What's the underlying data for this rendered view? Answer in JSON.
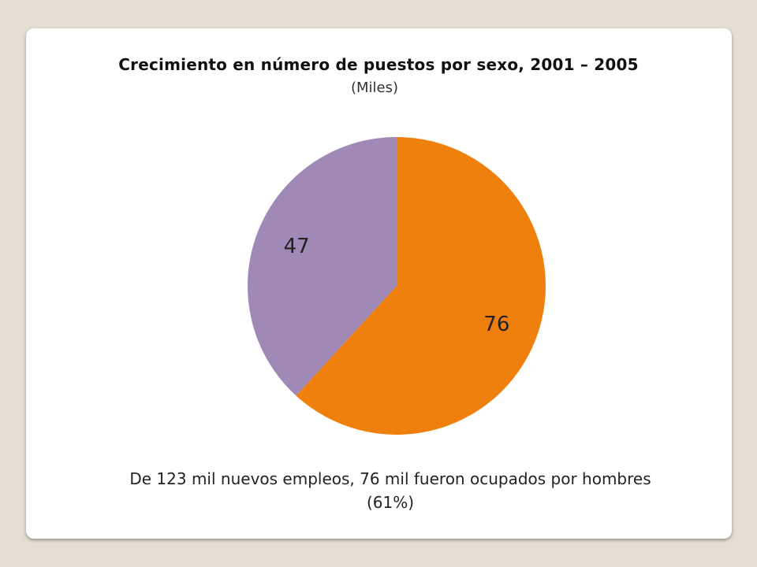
{
  "slide": {
    "title": "Crecimiento en número de puestos por sexo,  2001 – 2005",
    "subtitle": "(Miles)",
    "caption": "De 123 mil nuevos empleos, 76 mil fueron ocupados por hombres (61%)"
  },
  "chart_data": {
    "type": "pie",
    "title": "Crecimiento en número de puestos por sexo,  2001 – 2005",
    "subtitle": "(Miles)",
    "slices": [
      {
        "label": "76",
        "value": 76,
        "color": "#f0800e"
      },
      {
        "label": "47",
        "value": 47,
        "color": "#a089b7"
      }
    ],
    "start_angle": "12 o'clock",
    "direction": "clockwise",
    "legend": "none"
  }
}
